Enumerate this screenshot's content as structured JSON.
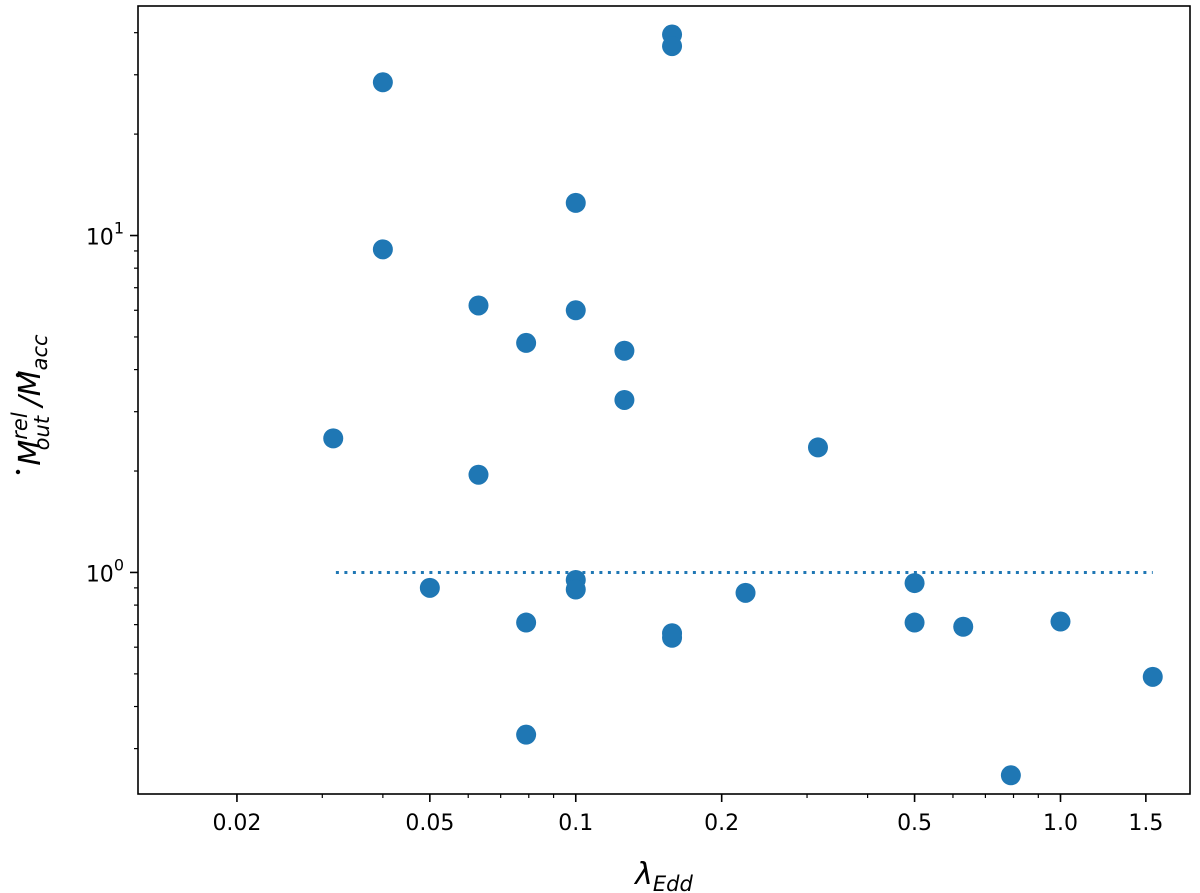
{
  "chart_data": {
    "type": "scatter",
    "xscale": "log",
    "yscale": "log",
    "xlim": [
      0.0125,
      1.85
    ],
    "ylim": [
      0.22,
      48
    ],
    "xlabel": {
      "symbol": "λ",
      "subscript": "Edd"
    },
    "ylabel": {
      "num_symbol": "M",
      "num_sup": "rel",
      "num_sub": "out",
      "separator": " /",
      "den_symbol": "M",
      "den_sub": "acc"
    },
    "x_ticks": [
      {
        "value": 0.02,
        "label": "0.02"
      },
      {
        "value": 0.05,
        "label": "0.05"
      },
      {
        "value": 0.1,
        "label": "0.1"
      },
      {
        "value": 0.2,
        "label": "0.2"
      },
      {
        "value": 0.5,
        "label": "0.5"
      },
      {
        "value": 1.0,
        "label": "1.0"
      },
      {
        "value": 1.5,
        "label": "1.5"
      }
    ],
    "y_ticks": [
      {
        "value": 1,
        "base": "10",
        "exp": "0"
      },
      {
        "value": 10,
        "base": "10",
        "exp": "1"
      }
    ],
    "reference_line": {
      "y": 1.0,
      "x_range": [
        0.032,
        1.55
      ],
      "style": "dotted",
      "color": "#1f77b4"
    },
    "marker_color": "#1f77b4",
    "grid": false,
    "legend": "none",
    "points": [
      {
        "x": 0.04,
        "y": 28.5
      },
      {
        "x": 0.04,
        "y": 9.1
      },
      {
        "x": 0.0316,
        "y": 2.5
      },
      {
        "x": 0.05,
        "y": 0.9
      },
      {
        "x": 0.063,
        "y": 6.2
      },
      {
        "x": 0.063,
        "y": 1.95
      },
      {
        "x": 0.079,
        "y": 4.8
      },
      {
        "x": 0.079,
        "y": 0.71
      },
      {
        "x": 0.079,
        "y": 0.33
      },
      {
        "x": 0.1,
        "y": 12.5
      },
      {
        "x": 0.1,
        "y": 6.0
      },
      {
        "x": 0.1,
        "y": 0.95
      },
      {
        "x": 0.1,
        "y": 0.89
      },
      {
        "x": 0.126,
        "y": 4.55
      },
      {
        "x": 0.126,
        "y": 3.25
      },
      {
        "x": 0.158,
        "y": 39.5
      },
      {
        "x": 0.158,
        "y": 36.5
      },
      {
        "x": 0.158,
        "y": 0.66
      },
      {
        "x": 0.158,
        "y": 0.64
      },
      {
        "x": 0.224,
        "y": 0.87
      },
      {
        "x": 0.316,
        "y": 2.35
      },
      {
        "x": 0.5,
        "y": 0.93
      },
      {
        "x": 0.5,
        "y": 0.71
      },
      {
        "x": 0.63,
        "y": 0.69
      },
      {
        "x": 0.79,
        "y": 0.25
      },
      {
        "x": 1.0,
        "y": 0.715
      },
      {
        "x": 1.55,
        "y": 0.49
      }
    ]
  }
}
